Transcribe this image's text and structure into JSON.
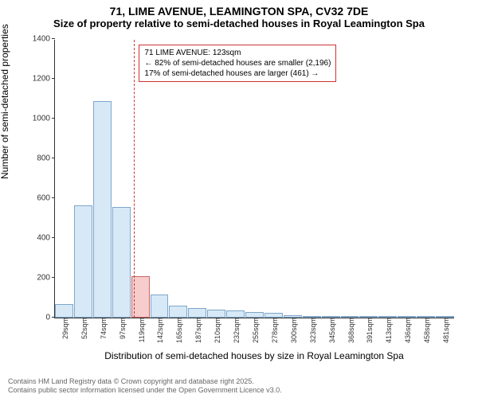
{
  "title_line1": "71, LIME AVENUE, LEAMINGTON SPA, CV32 7DE",
  "title_line2": "Size of property relative to semi-detached houses in Royal Leamington Spa",
  "ylabel": "Number of semi-detached properties",
  "xlabel": "Distribution of semi-detached houses by size in Royal Leamington Spa",
  "attribution_line1": "Contains HM Land Registry data © Crown copyright and database right 2025.",
  "attribution_line2": "Contains public sector information licensed under the Open Government Licence v3.0.",
  "chart": {
    "type": "histogram",
    "ylim": [
      0,
      1400
    ],
    "ytick_step": 200,
    "yticks": [
      0,
      200,
      400,
      600,
      800,
      1000,
      1200,
      1400
    ],
    "background_color": "#ffffff",
    "axis_color": "#333333",
    "bar_fill": "#d7e9f7",
    "bar_border": "#7fa6c9",
    "highlight_fill": "#f6cccc",
    "highlight_border": "#cc6666",
    "ref_line_color": "#cc3333",
    "ref_line_x": 123,
    "annotation": {
      "line1": "71 LIME AVENUE: 123sqm",
      "line2": "← 82% of semi-detached houses are smaller (2,196)",
      "line3": "17% of semi-detached houses are larger (461) →",
      "border_color": "#cc3333"
    },
    "x_start": 29,
    "bin_width": 22.6,
    "bins": [
      {
        "label": "29sqm",
        "value": 70,
        "highlight": false
      },
      {
        "label": "52sqm",
        "value": 565,
        "highlight": false
      },
      {
        "label": "74sqm",
        "value": 1090,
        "highlight": false
      },
      {
        "label": "97sqm",
        "value": 555,
        "highlight": false
      },
      {
        "label": "119sqm",
        "value": 210,
        "highlight": true
      },
      {
        "label": "142sqm",
        "value": 115,
        "highlight": false
      },
      {
        "label": "165sqm",
        "value": 60,
        "highlight": false
      },
      {
        "label": "187sqm",
        "value": 50,
        "highlight": false
      },
      {
        "label": "210sqm",
        "value": 40,
        "highlight": false
      },
      {
        "label": "232sqm",
        "value": 35,
        "highlight": false
      },
      {
        "label": "255sqm",
        "value": 30,
        "highlight": false
      },
      {
        "label": "278sqm",
        "value": 25,
        "highlight": false
      },
      {
        "label": "300sqm",
        "value": 12,
        "highlight": false
      },
      {
        "label": "323sqm",
        "value": 7,
        "highlight": false
      },
      {
        "label": "345sqm",
        "value": 4,
        "highlight": false
      },
      {
        "label": "368sqm",
        "value": 3,
        "highlight": false
      },
      {
        "label": "391sqm",
        "value": 2,
        "highlight": false
      },
      {
        "label": "413sqm",
        "value": 2,
        "highlight": false
      },
      {
        "label": "436sqm",
        "value": 1,
        "highlight": false
      },
      {
        "label": "458sqm",
        "value": 1,
        "highlight": false
      },
      {
        "label": "481sqm",
        "value": 1,
        "highlight": false
      }
    ]
  }
}
